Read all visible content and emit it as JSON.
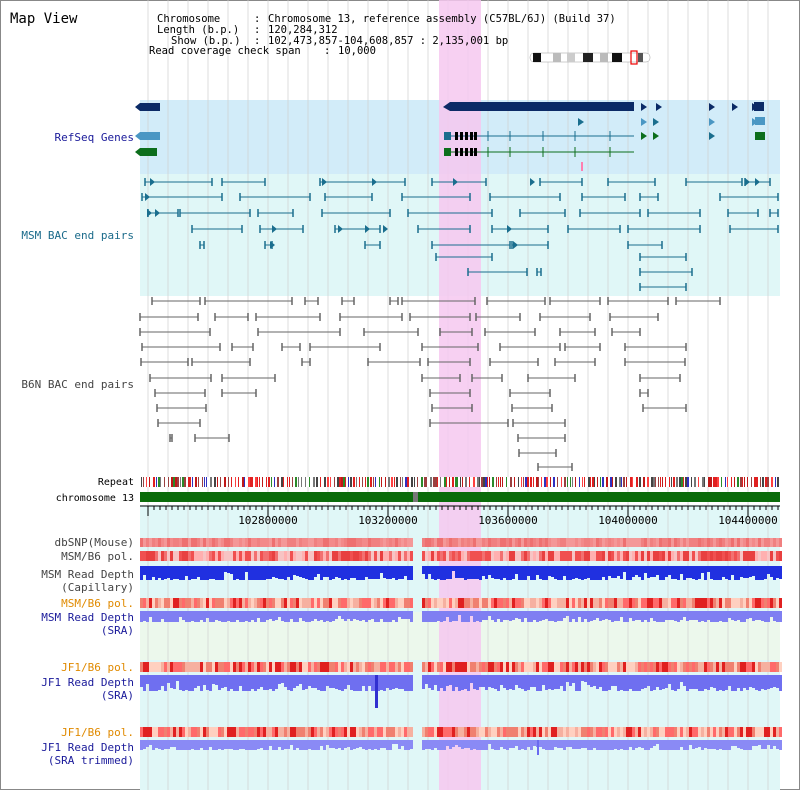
{
  "app": {
    "title": "Map View"
  },
  "header": {
    "chromosome_label": "Chromosome",
    "chromosome_value": "Chromosome 13, reference assembly (C57BL/6J) (Build 37)",
    "length_label": "Length (b.p.)",
    "length_value": "120,284,312",
    "show_label": "Show (b.p.)",
    "show_value": "102,473,857-104,608,857 : 2,135,001 bp",
    "coverage_label": "Read coverage check span",
    "coverage_value": "10,000"
  },
  "tracks": {
    "refseq": "RefSeq Genes",
    "msm_bac": "MSM BAC end pairs",
    "b6n_bac": "B6N BAC end pairs",
    "repeat": "Repeat",
    "chromosome": "chromosome 13",
    "dbsnp": "dbSNP(Mouse)",
    "msm_b6_pol_1": "MSM/B6 pol.",
    "msm_read_depth_cap_1": "MSM Read Depth",
    "msm_read_depth_cap_2": "(Capillary)",
    "msm_b6_pol_2": "MSM/B6 pol.",
    "msm_read_depth_sra_1": "MSM Read Depth",
    "msm_read_depth_sra_2": "(SRA)",
    "jf1_b6_pol_1": "JF1/B6 pol.",
    "jf1_read_depth_sra_1": "JF1 Read Depth",
    "jf1_read_depth_sra_2": "(SRA)",
    "jf1_b6_pol_2": "JF1/B6 pol.",
    "jf1_read_depth_trim_1": "JF1 Read Depth",
    "jf1_read_depth_trim_2": "(SRA trimmed)"
  },
  "ruler": {
    "ticks": [
      "102800000",
      "103200000",
      "103600000",
      "104000000",
      "104400000"
    ]
  },
  "colors": {
    "highlight": "#f6c8f0",
    "refseq_bg": "#d2ecf9",
    "track_bg": "#e0f7f7",
    "navy": "#0b2a66",
    "teal": "#1a6e8e",
    "gene_green": "#0c6e1c",
    "bac_gray": "#555555",
    "chrom_green": "#0a6b0a",
    "label_navy": "#1a1a9a",
    "label_teal": "#1a6a8a",
    "label_gray": "#444444",
    "label_orange": "#e08a00"
  }
}
